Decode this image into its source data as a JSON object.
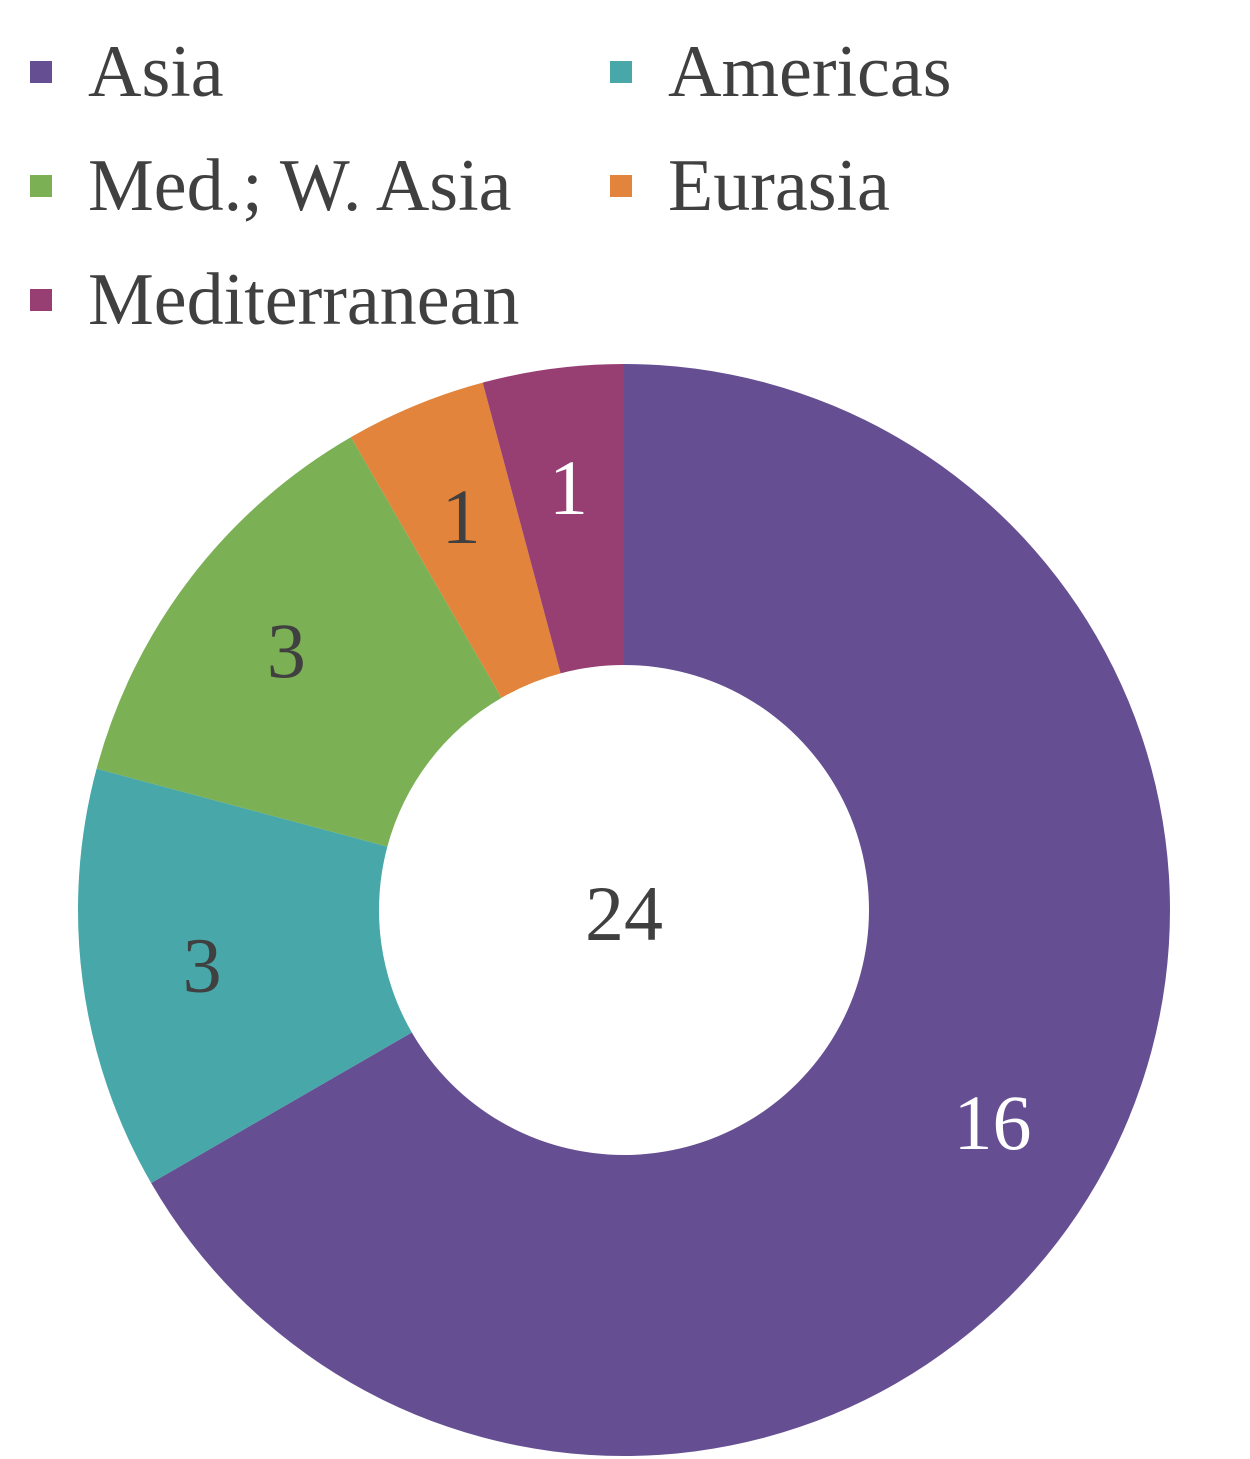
{
  "chart_data": {
    "type": "pie",
    "subtype": "donut",
    "categories": [
      "Asia",
      "Americas",
      "Med.; W. Asia",
      "Eurasia",
      "Mediterranean"
    ],
    "values": [
      16,
      3,
      3,
      1,
      1
    ],
    "colors": [
      "#654f92",
      "#47a7a9",
      "#7bb055",
      "#e2843b",
      "#973f73"
    ],
    "label_colors": [
      "#ffffff",
      "#404040",
      "#404040",
      "#404040",
      "#ffffff"
    ],
    "center_label": "24",
    "legend_position": "top"
  }
}
